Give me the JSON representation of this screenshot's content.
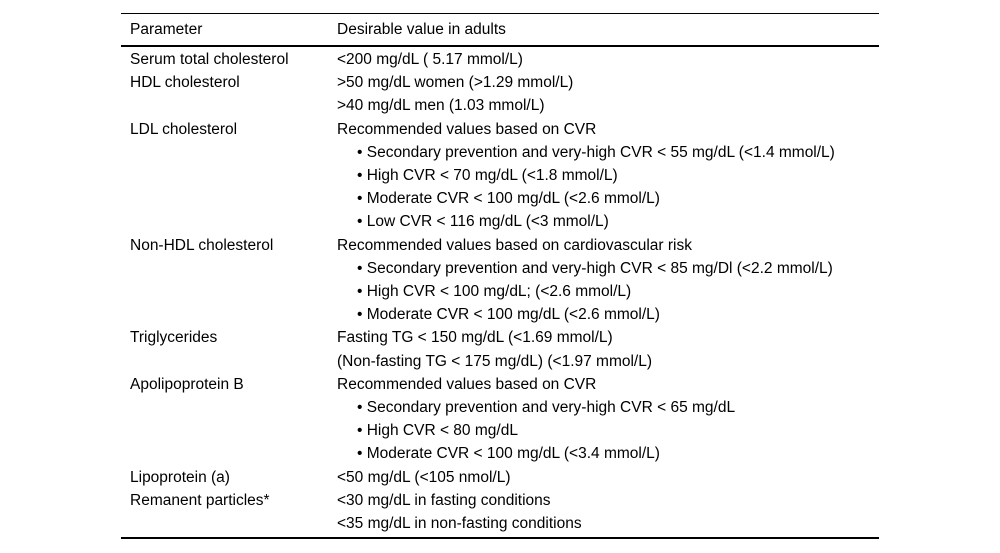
{
  "table": {
    "columns": [
      "Parameter",
      "Desirable value in adults"
    ],
    "rows": [
      {
        "parameter": "Serum total cholesterol",
        "lines": [
          {
            "text": "<200 mg/dL ( 5.17 mmol/L)"
          }
        ]
      },
      {
        "parameter": "HDL cholesterol",
        "lines": [
          {
            "text": ">50 mg/dL women (>1.29 mmol/L)"
          },
          {
            "text": ">40 mg/dL men (1.03 mmol/L)"
          }
        ]
      },
      {
        "parameter": "LDL cholesterol",
        "lines": [
          {
            "text": "Recommended values based on CVR"
          },
          {
            "text": "• Secondary prevention and very-high CVR < 55 mg/dL (<1.4 mmol/L)",
            "bullet": true
          },
          {
            "text": "• High CVR < 70 mg/dL (<1.8 mmol/L)",
            "bullet": true
          },
          {
            "text": "• Moderate CVR < 100 mg/dL (<2.6 mmol/L)",
            "bullet": true
          },
          {
            "text": "• Low CVR < 116 mg/dL (<3 mmol/L)",
            "bullet": true
          }
        ]
      },
      {
        "parameter": "Non-HDL cholesterol",
        "lines": [
          {
            "text": "Recommended values based on cardiovascular risk"
          },
          {
            "text": "• Secondary prevention and very-high CVR < 85 mg/Dl (<2.2 mmol/L)",
            "bullet": true
          },
          {
            "text": "• High CVR < 100 mg/dL; (<2.6 mmol/L)",
            "bullet": true
          },
          {
            "text": "• Moderate CVR < 100 mg/dL (<2.6 mmol/L)",
            "bullet": true
          }
        ]
      },
      {
        "parameter": "Triglycerides",
        "lines": [
          {
            "text": "Fasting TG < 150 mg/dL (<1.69 mmol/L)"
          },
          {
            "text": "(Non-fasting TG < 175 mg/dL) (<1.97 mmol/L)"
          }
        ]
      },
      {
        "parameter": "Apolipoprotein B",
        "lines": [
          {
            "text": "Recommended values based on CVR"
          },
          {
            "text": "• Secondary prevention and very-high CVR < 65 mg/dL",
            "bullet": true
          },
          {
            "text": "• High CVR < 80 mg/dL",
            "bullet": true
          },
          {
            "text": "• Moderate CVR < 100 mg/dL (<3.4 mmol/L)",
            "bullet": true
          }
        ]
      },
      {
        "parameter": "Lipoprotein (a)",
        "lines": [
          {
            "text": "<50 mg/dL (<105 nmol/L)"
          }
        ]
      },
      {
        "parameter": "Remanent particles*",
        "lines": [
          {
            "text": "<30 mg/dL in fasting conditions"
          },
          {
            "text": "<35 mg/dL in non-fasting conditions"
          }
        ]
      }
    ],
    "text_color": "#000000",
    "background_color": "#ffffff"
  }
}
